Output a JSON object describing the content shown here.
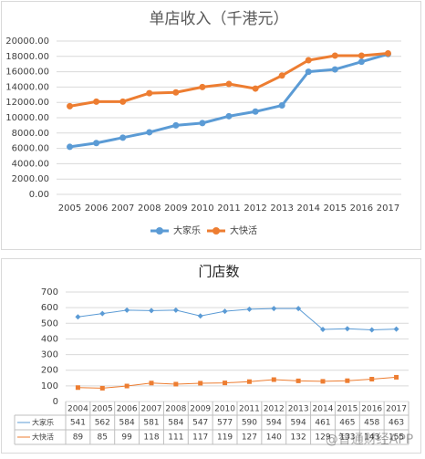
{
  "chart_data": [
    {
      "type": "line",
      "title": "单店收入（千港元）",
      "categories": [
        "2005",
        "2006",
        "2007",
        "2008",
        "2009",
        "2010",
        "2011",
        "2012",
        "2013",
        "2014",
        "2015",
        "2016",
        "2017"
      ],
      "series": [
        {
          "name": "大家乐",
          "color": "#5b9bd5",
          "values": [
            6200,
            6700,
            7400,
            8100,
            9000,
            9300,
            10200,
            10800,
            11600,
            16000,
            16300,
            17300,
            18300
          ]
        },
        {
          "name": "大快活",
          "color": "#ed7d31",
          "values": [
            11500,
            12100,
            12100,
            13200,
            13300,
            14000,
            14400,
            13800,
            15500,
            17500,
            18100,
            18100,
            18400
          ]
        }
      ],
      "ylim": [
        0,
        20000
      ],
      "yticks": [
        {
          "value": 0,
          "label": "0.00"
        },
        {
          "value": 2000,
          "label": "2000.00"
        },
        {
          "value": 4000,
          "label": "4000.00"
        },
        {
          "value": 6000,
          "label": "6000.00"
        },
        {
          "value": 8000,
          "label": "8000.00"
        },
        {
          "value": 10000,
          "label": "10000.00"
        },
        {
          "value": 12000,
          "label": "12000.00"
        },
        {
          "value": 14000,
          "label": "14000.00"
        },
        {
          "value": 16000,
          "label": "16000.00"
        },
        {
          "value": 18000,
          "label": "18000.00"
        },
        {
          "value": 20000,
          "label": "20000.00"
        }
      ],
      "grid": true,
      "legend": "bottom"
    },
    {
      "type": "line",
      "title": "门店数",
      "categories": [
        "2004",
        "2005",
        "2006",
        "2007",
        "2008",
        "2009",
        "2010",
        "2011",
        "2012",
        "2013",
        "2014",
        "2015",
        "2016",
        "2017"
      ],
      "series": [
        {
          "name": "大家乐",
          "color": "#5b9bd5",
          "marker": "diamond",
          "values": [
            541,
            562,
            584,
            581,
            584,
            547,
            577,
            590,
            594,
            594,
            461,
            465,
            458,
            463
          ]
        },
        {
          "name": "大快活",
          "color": "#ed7d31",
          "marker": "square",
          "values": [
            89,
            85,
            99,
            118,
            111,
            117,
            119,
            127,
            140,
            132,
            129,
            133,
            143,
            155
          ]
        }
      ],
      "ylim": [
        0,
        700
      ],
      "yticks": [
        0,
        100,
        200,
        300,
        400,
        500,
        600,
        700
      ],
      "grid": true,
      "legend": "table",
      "watermark": "@智通财经APP"
    }
  ]
}
